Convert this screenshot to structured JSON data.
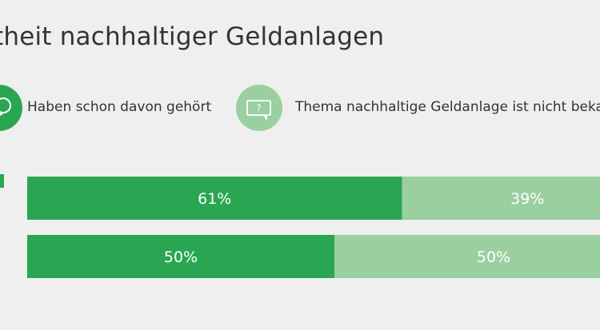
{
  "title": "theit nachhaltiger Geldanlagen",
  "legend": [
    {
      "label": "Haben schon davon gehört",
      "icon": "speech-bubble-icon",
      "color": "#2aa652"
    },
    {
      "label": "Thema nachhaltige Geldanlage ist nicht beka",
      "icon": "question-speech-bubble-icon",
      "color": "#9acf9f"
    }
  ],
  "chart_data": {
    "type": "bar",
    "orientation": "horizontal-stacked-100",
    "categories": [
      "",
      ""
    ],
    "series": [
      {
        "name": "Haben schon davon gehört",
        "values": [
          61,
          50
        ],
        "labels": [
          "61%",
          "50%"
        ],
        "color": "#2aa652"
      },
      {
        "name": "Thema nachhaltige Geldanlage ist nicht beka",
        "values": [
          39,
          50
        ],
        "labels": [
          "39%",
          "50%"
        ],
        "color": "#9acf9f"
      }
    ],
    "xlim": [
      0,
      100
    ],
    "grid": false,
    "legend_position": "top"
  }
}
